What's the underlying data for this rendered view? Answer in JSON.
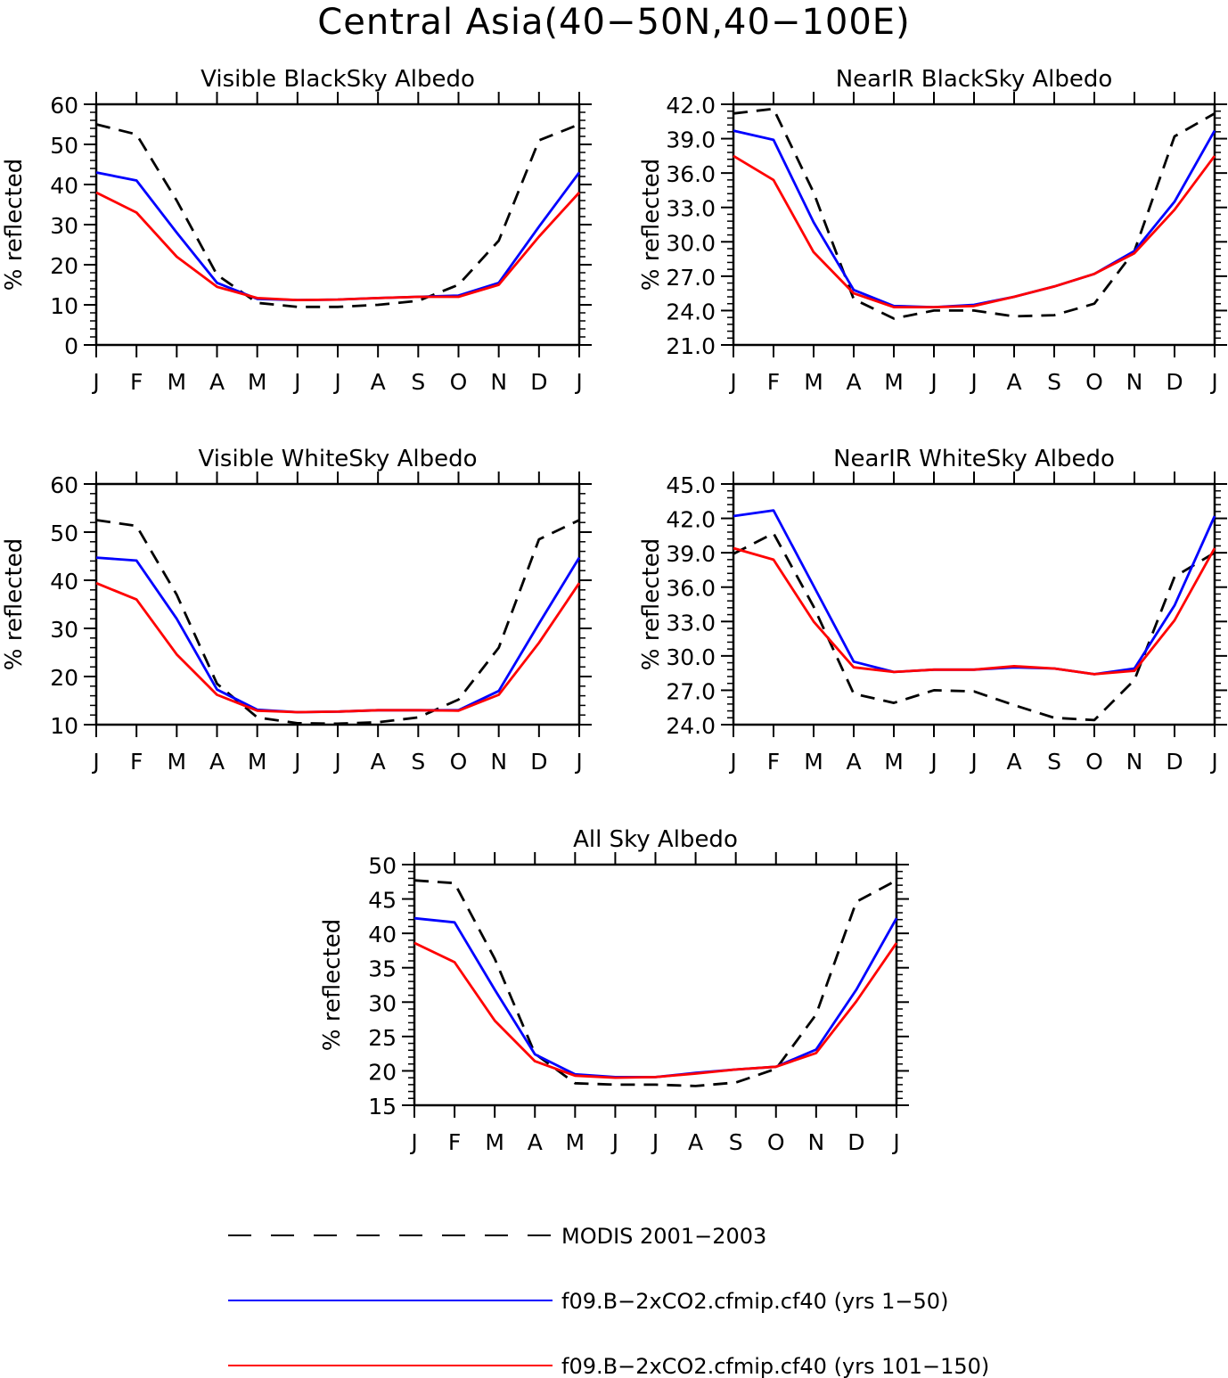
{
  "title": "Central Asia(40−50N,40−100E)",
  "colors": {
    "modis": "#000000",
    "run1": "#0000ff",
    "run2": "#ff0000"
  },
  "legend": [
    {
      "label": "MODIS 2001−2003",
      "style": "dashed",
      "color": "#000000"
    },
    {
      "label": "f09.B−2xCO2.cfmip.cf40 (yrs 1−50)",
      "style": "solid",
      "color": "#0000ff"
    },
    {
      "label": "f09.B−2xCO2.cfmip.cf40 (yrs 101−150)",
      "style": "solid",
      "color": "#ff0000"
    }
  ],
  "chart_data": [
    {
      "type": "line",
      "title": "Visible BlackSky Albedo",
      "ylabel": "% reflected",
      "categories": [
        "J",
        "F",
        "M",
        "A",
        "M",
        "J",
        "J",
        "A",
        "S",
        "O",
        "N",
        "D",
        "J"
      ],
      "ylim": [
        0,
        60
      ],
      "yticks": [
        "0",
        "10",
        "20",
        "30",
        "40",
        "50",
        "60"
      ],
      "series": [
        {
          "values": [
            55.0,
            52.5,
            36.0,
            17.5,
            10.5,
            9.5,
            9.5,
            10.0,
            11.0,
            15.0,
            26.0,
            51.0,
            55.0
          ]
        },
        {
          "values": [
            43.0,
            41.0,
            28.0,
            15.5,
            11.5,
            11.2,
            11.3,
            11.7,
            12.0,
            12.3,
            15.5,
            29.5,
            43.0
          ]
        },
        {
          "values": [
            38.0,
            33.0,
            22.0,
            14.5,
            11.7,
            11.2,
            11.3,
            11.7,
            12.0,
            12.0,
            15.0,
            27.0,
            38.0
          ]
        }
      ]
    },
    {
      "type": "line",
      "title": "NearIR BlackSky Albedo",
      "ylabel": "% reflected",
      "categories": [
        "J",
        "F",
        "M",
        "A",
        "M",
        "J",
        "J",
        "A",
        "S",
        "O",
        "N",
        "D",
        "J"
      ],
      "ylim": [
        21,
        42
      ],
      "yticks": [
        "21.0",
        "24.0",
        "27.0",
        "30.0",
        "33.0",
        "36.0",
        "39.0",
        "42.0"
      ],
      "series": [
        {
          "values": [
            41.2,
            41.6,
            34.3,
            25.0,
            23.3,
            24.0,
            24.0,
            23.5,
            23.6,
            24.6,
            29.2,
            39.2,
            41.2
          ]
        },
        {
          "values": [
            39.7,
            38.9,
            31.7,
            25.8,
            24.4,
            24.3,
            24.5,
            25.2,
            26.1,
            27.2,
            29.2,
            33.5,
            39.7
          ]
        },
        {
          "values": [
            37.5,
            35.4,
            29.1,
            25.5,
            24.3,
            24.3,
            24.4,
            25.2,
            26.1,
            27.2,
            29.0,
            32.8,
            37.5
          ]
        }
      ]
    },
    {
      "type": "line",
      "title": "Visible WhiteSky Albedo",
      "ylabel": "% reflected",
      "categories": [
        "J",
        "F",
        "M",
        "A",
        "M",
        "J",
        "J",
        "A",
        "S",
        "O",
        "N",
        "D",
        "J"
      ],
      "ylim": [
        10,
        60
      ],
      "yticks": [
        "10",
        "20",
        "30",
        "40",
        "50",
        "60"
      ],
      "series": [
        {
          "values": [
            52.5,
            51.3,
            37.0,
            18.5,
            11.5,
            10.3,
            10.2,
            10.5,
            11.5,
            15.2,
            26.0,
            48.5,
            52.5
          ]
        },
        {
          "values": [
            44.7,
            44.1,
            32.0,
            17.3,
            13.1,
            12.6,
            12.7,
            13.0,
            13.0,
            13.0,
            17.0,
            31.0,
            44.7
          ]
        },
        {
          "values": [
            39.4,
            36.0,
            24.6,
            16.2,
            12.9,
            12.6,
            12.7,
            13.0,
            13.0,
            12.9,
            16.2,
            27.0,
            39.4
          ]
        }
      ]
    },
    {
      "type": "line",
      "title": "NearIR WhiteSky Albedo",
      "ylabel": "% reflected",
      "categories": [
        "J",
        "F",
        "M",
        "A",
        "M",
        "J",
        "J",
        "A",
        "S",
        "O",
        "N",
        "D",
        "J"
      ],
      "ylim": [
        24,
        45
      ],
      "yticks": [
        "24.0",
        "27.0",
        "30.0",
        "33.0",
        "36.0",
        "39.0",
        "42.0",
        "45.0"
      ],
      "series": [
        {
          "values": [
            38.9,
            40.7,
            34.3,
            26.7,
            25.9,
            27.0,
            26.9,
            25.7,
            24.6,
            24.4,
            27.9,
            36.9,
            39.0
          ]
        },
        {
          "values": [
            42.2,
            42.7,
            36.1,
            29.5,
            28.6,
            28.8,
            28.8,
            29.0,
            28.9,
            28.4,
            28.9,
            34.4,
            42.2
          ]
        },
        {
          "values": [
            39.4,
            38.4,
            33.0,
            29.0,
            28.6,
            28.8,
            28.8,
            29.1,
            28.9,
            28.4,
            28.7,
            33.1,
            39.4
          ]
        }
      ]
    },
    {
      "type": "line",
      "title": "All Sky Albedo",
      "ylabel": "% reflected",
      "categories": [
        "J",
        "F",
        "M",
        "A",
        "M",
        "J",
        "J",
        "A",
        "S",
        "O",
        "N",
        "D",
        "J"
      ],
      "ylim": [
        15,
        50
      ],
      "yticks": [
        "15",
        "20",
        "25",
        "30",
        "35",
        "40",
        "45",
        "50"
      ],
      "series": [
        {
          "values": [
            47.7,
            47.3,
            36.3,
            22.5,
            18.2,
            18.0,
            18.0,
            17.8,
            18.3,
            20.3,
            28.2,
            44.6,
            47.7
          ]
        },
        {
          "values": [
            42.2,
            41.6,
            31.8,
            22.4,
            19.5,
            19.1,
            19.1,
            19.7,
            20.2,
            20.6,
            23.1,
            31.8,
            42.2
          ]
        },
        {
          "values": [
            38.6,
            35.8,
            27.3,
            21.4,
            19.3,
            19.0,
            19.1,
            19.6,
            20.2,
            20.6,
            22.6,
            30.1,
            38.6
          ]
        }
      ]
    }
  ]
}
